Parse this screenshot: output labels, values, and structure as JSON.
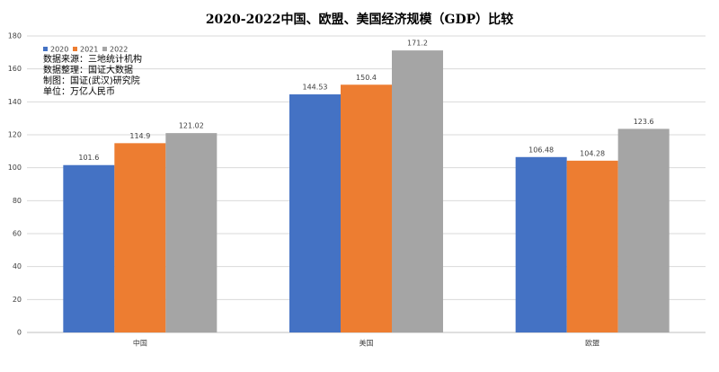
{
  "chart_data": {
    "type": "bar",
    "title": "2020-2022中国、欧盟、美国经济规模（GDP）比较",
    "annotations": [
      "数据来源：三地统计机构",
      "数据整理：国证大数据",
      "制图：国证(武汉)研究院",
      "单位：万亿人民币"
    ],
    "categories": [
      "中国",
      "美国",
      "欧盟"
    ],
    "series": [
      {
        "name": "2020",
        "color": "#4472c4",
        "values": [
          101.6,
          144.53,
          106.48
        ]
      },
      {
        "name": "2021",
        "color": "#ed7d31",
        "values": [
          114.9,
          150.4,
          104.28
        ]
      },
      {
        "name": "2022",
        "color": "#a5a5a5",
        "values": [
          121.02,
          171.2,
          123.6
        ]
      }
    ],
    "ylim": [
      0,
      180
    ],
    "yticks": [
      0,
      20,
      40,
      60,
      80,
      100,
      120,
      140,
      160,
      180
    ],
    "grid": true,
    "legend": "top-left"
  }
}
